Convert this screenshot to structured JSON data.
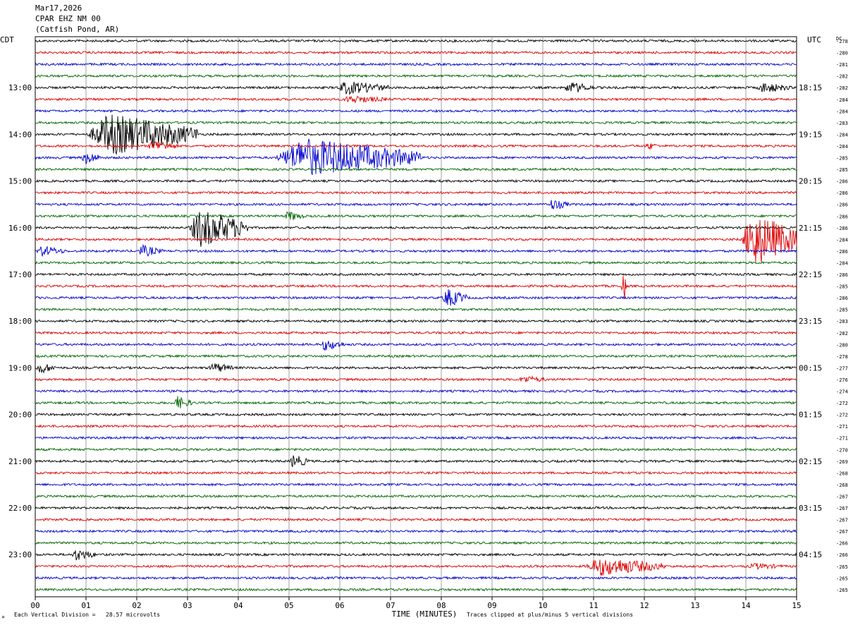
{
  "header": {
    "date": "Mar17,2026",
    "station": "CPAR EHZ NM 00",
    "location": "(Catfish Pond, AR)"
  },
  "footer": {
    "marker": "¤",
    "scale": "Each Vertical Division =   28.57 microvolts",
    "xlabel": "TIME (MINUTES)",
    "clip": "Traces clipped at plus/minus 5 vertical divisions"
  },
  "colors": {
    "trace": [
      "#000000",
      "#dd0000",
      "#0000cc",
      "#006600"
    ],
    "grid": "#888888"
  },
  "chart_data": {
    "type": "line",
    "title": "CPAR EHZ NM 00 (Catfish Pond, AR)",
    "xlabel": "TIME (MINUTES)",
    "left_axis_label": "CDT",
    "right_axis_label": "UTC",
    "dc_label": "DC",
    "x_ticks": [
      "00",
      "01",
      "02",
      "03",
      "04",
      "05",
      "06",
      "07",
      "08",
      "09",
      "10",
      "11",
      "12",
      "13",
      "14",
      "15"
    ],
    "xlim": [
      0,
      15
    ],
    "rows_per_hour": 4,
    "trace_count": 48,
    "left_labels": [
      {
        "row": 4,
        "text": "13:00"
      },
      {
        "row": 8,
        "text": "14:00"
      },
      {
        "row": 12,
        "text": "15:00"
      },
      {
        "row": 16,
        "text": "16:00"
      },
      {
        "row": 20,
        "text": "17:00"
      },
      {
        "row": 24,
        "text": "18:00"
      },
      {
        "row": 28,
        "text": "19:00"
      },
      {
        "row": 32,
        "text": "20:00"
      },
      {
        "row": 36,
        "text": "21:00"
      },
      {
        "row": 40,
        "text": "22:00"
      },
      {
        "row": 44,
        "text": "23:00"
      }
    ],
    "right_labels": [
      {
        "row": 4,
        "text": "18:15"
      },
      {
        "row": 8,
        "text": "19:15"
      },
      {
        "row": 12,
        "text": "20:15"
      },
      {
        "row": 16,
        "text": "21:15"
      },
      {
        "row": 20,
        "text": "22:15"
      },
      {
        "row": 24,
        "text": "23:15"
      },
      {
        "row": 28,
        "text": "00:15"
      },
      {
        "row": 32,
        "text": "01:15"
      },
      {
        "row": 36,
        "text": "02:15"
      },
      {
        "row": 40,
        "text": "03:15"
      },
      {
        "row": 44,
        "text": "04:15"
      }
    ],
    "dc_offsets": [
      "-278",
      "-280",
      "-281",
      "-282",
      "-282",
      "-284",
      "-284",
      "-283",
      "-284",
      "-284",
      "-285",
      "-285",
      "-286",
      "-286",
      "-286",
      "-286",
      "-286",
      "-284",
      "-286",
      "-284",
      "-286",
      "-285",
      "-286",
      "-285",
      "-283",
      "-282",
      "-280",
      "-278",
      "-277",
      "-276",
      "-274",
      "-272",
      "-272",
      "-271",
      "-271",
      "-270",
      "-269",
      "-268",
      "-268",
      "-267",
      "-267",
      "-267",
      "-267",
      "-266",
      "-266",
      "-265",
      "-265",
      "-265"
    ],
    "events": [
      {
        "row": 4,
        "start": 5.9,
        "end": 7.0,
        "amp": 10
      },
      {
        "row": 4,
        "start": 10.4,
        "end": 11.0,
        "amp": 9
      },
      {
        "row": 4,
        "start": 14.2,
        "end": 14.9,
        "amp": 8
      },
      {
        "row": 5,
        "start": 6.0,
        "end": 7.0,
        "amp": 6
      },
      {
        "row": 8,
        "start": 1.0,
        "end": 3.2,
        "amp": 30
      },
      {
        "row": 9,
        "start": 2.2,
        "end": 2.8,
        "amp": 9
      },
      {
        "row": 9,
        "start": 12.0,
        "end": 12.3,
        "amp": 6
      },
      {
        "row": 10,
        "start": 0.9,
        "end": 1.3,
        "amp": 10
      },
      {
        "row": 10,
        "start": 4.7,
        "end": 7.6,
        "amp": 28
      },
      {
        "row": 14,
        "start": 10.1,
        "end": 10.5,
        "amp": 9
      },
      {
        "row": 15,
        "start": 4.9,
        "end": 5.3,
        "amp": 8
      },
      {
        "row": 16,
        "start": 3.0,
        "end": 4.2,
        "amp": 28
      },
      {
        "row": 17,
        "start": 13.9,
        "end": 15.0,
        "amp": 40
      },
      {
        "row": 18,
        "start": 0.0,
        "end": 0.6,
        "amp": 8
      },
      {
        "row": 18,
        "start": 2.0,
        "end": 2.5,
        "amp": 9
      },
      {
        "row": 21,
        "start": 11.55,
        "end": 11.65,
        "amp": 28
      },
      {
        "row": 22,
        "start": 8.0,
        "end": 8.5,
        "amp": 14
      },
      {
        "row": 26,
        "start": 5.6,
        "end": 6.1,
        "amp": 9
      },
      {
        "row": 28,
        "start": 0.0,
        "end": 0.4,
        "amp": 9
      },
      {
        "row": 28,
        "start": 3.4,
        "end": 3.9,
        "amp": 8
      },
      {
        "row": 29,
        "start": 9.5,
        "end": 10.1,
        "amp": 6
      },
      {
        "row": 31,
        "start": 2.7,
        "end": 3.1,
        "amp": 10
      },
      {
        "row": 36,
        "start": 5.0,
        "end": 5.4,
        "amp": 10
      },
      {
        "row": 44,
        "start": 0.7,
        "end": 1.2,
        "amp": 9
      },
      {
        "row": 45,
        "start": 10.8,
        "end": 12.4,
        "amp": 14
      },
      {
        "row": 45,
        "start": 14.0,
        "end": 14.8,
        "amp": 5
      }
    ]
  }
}
